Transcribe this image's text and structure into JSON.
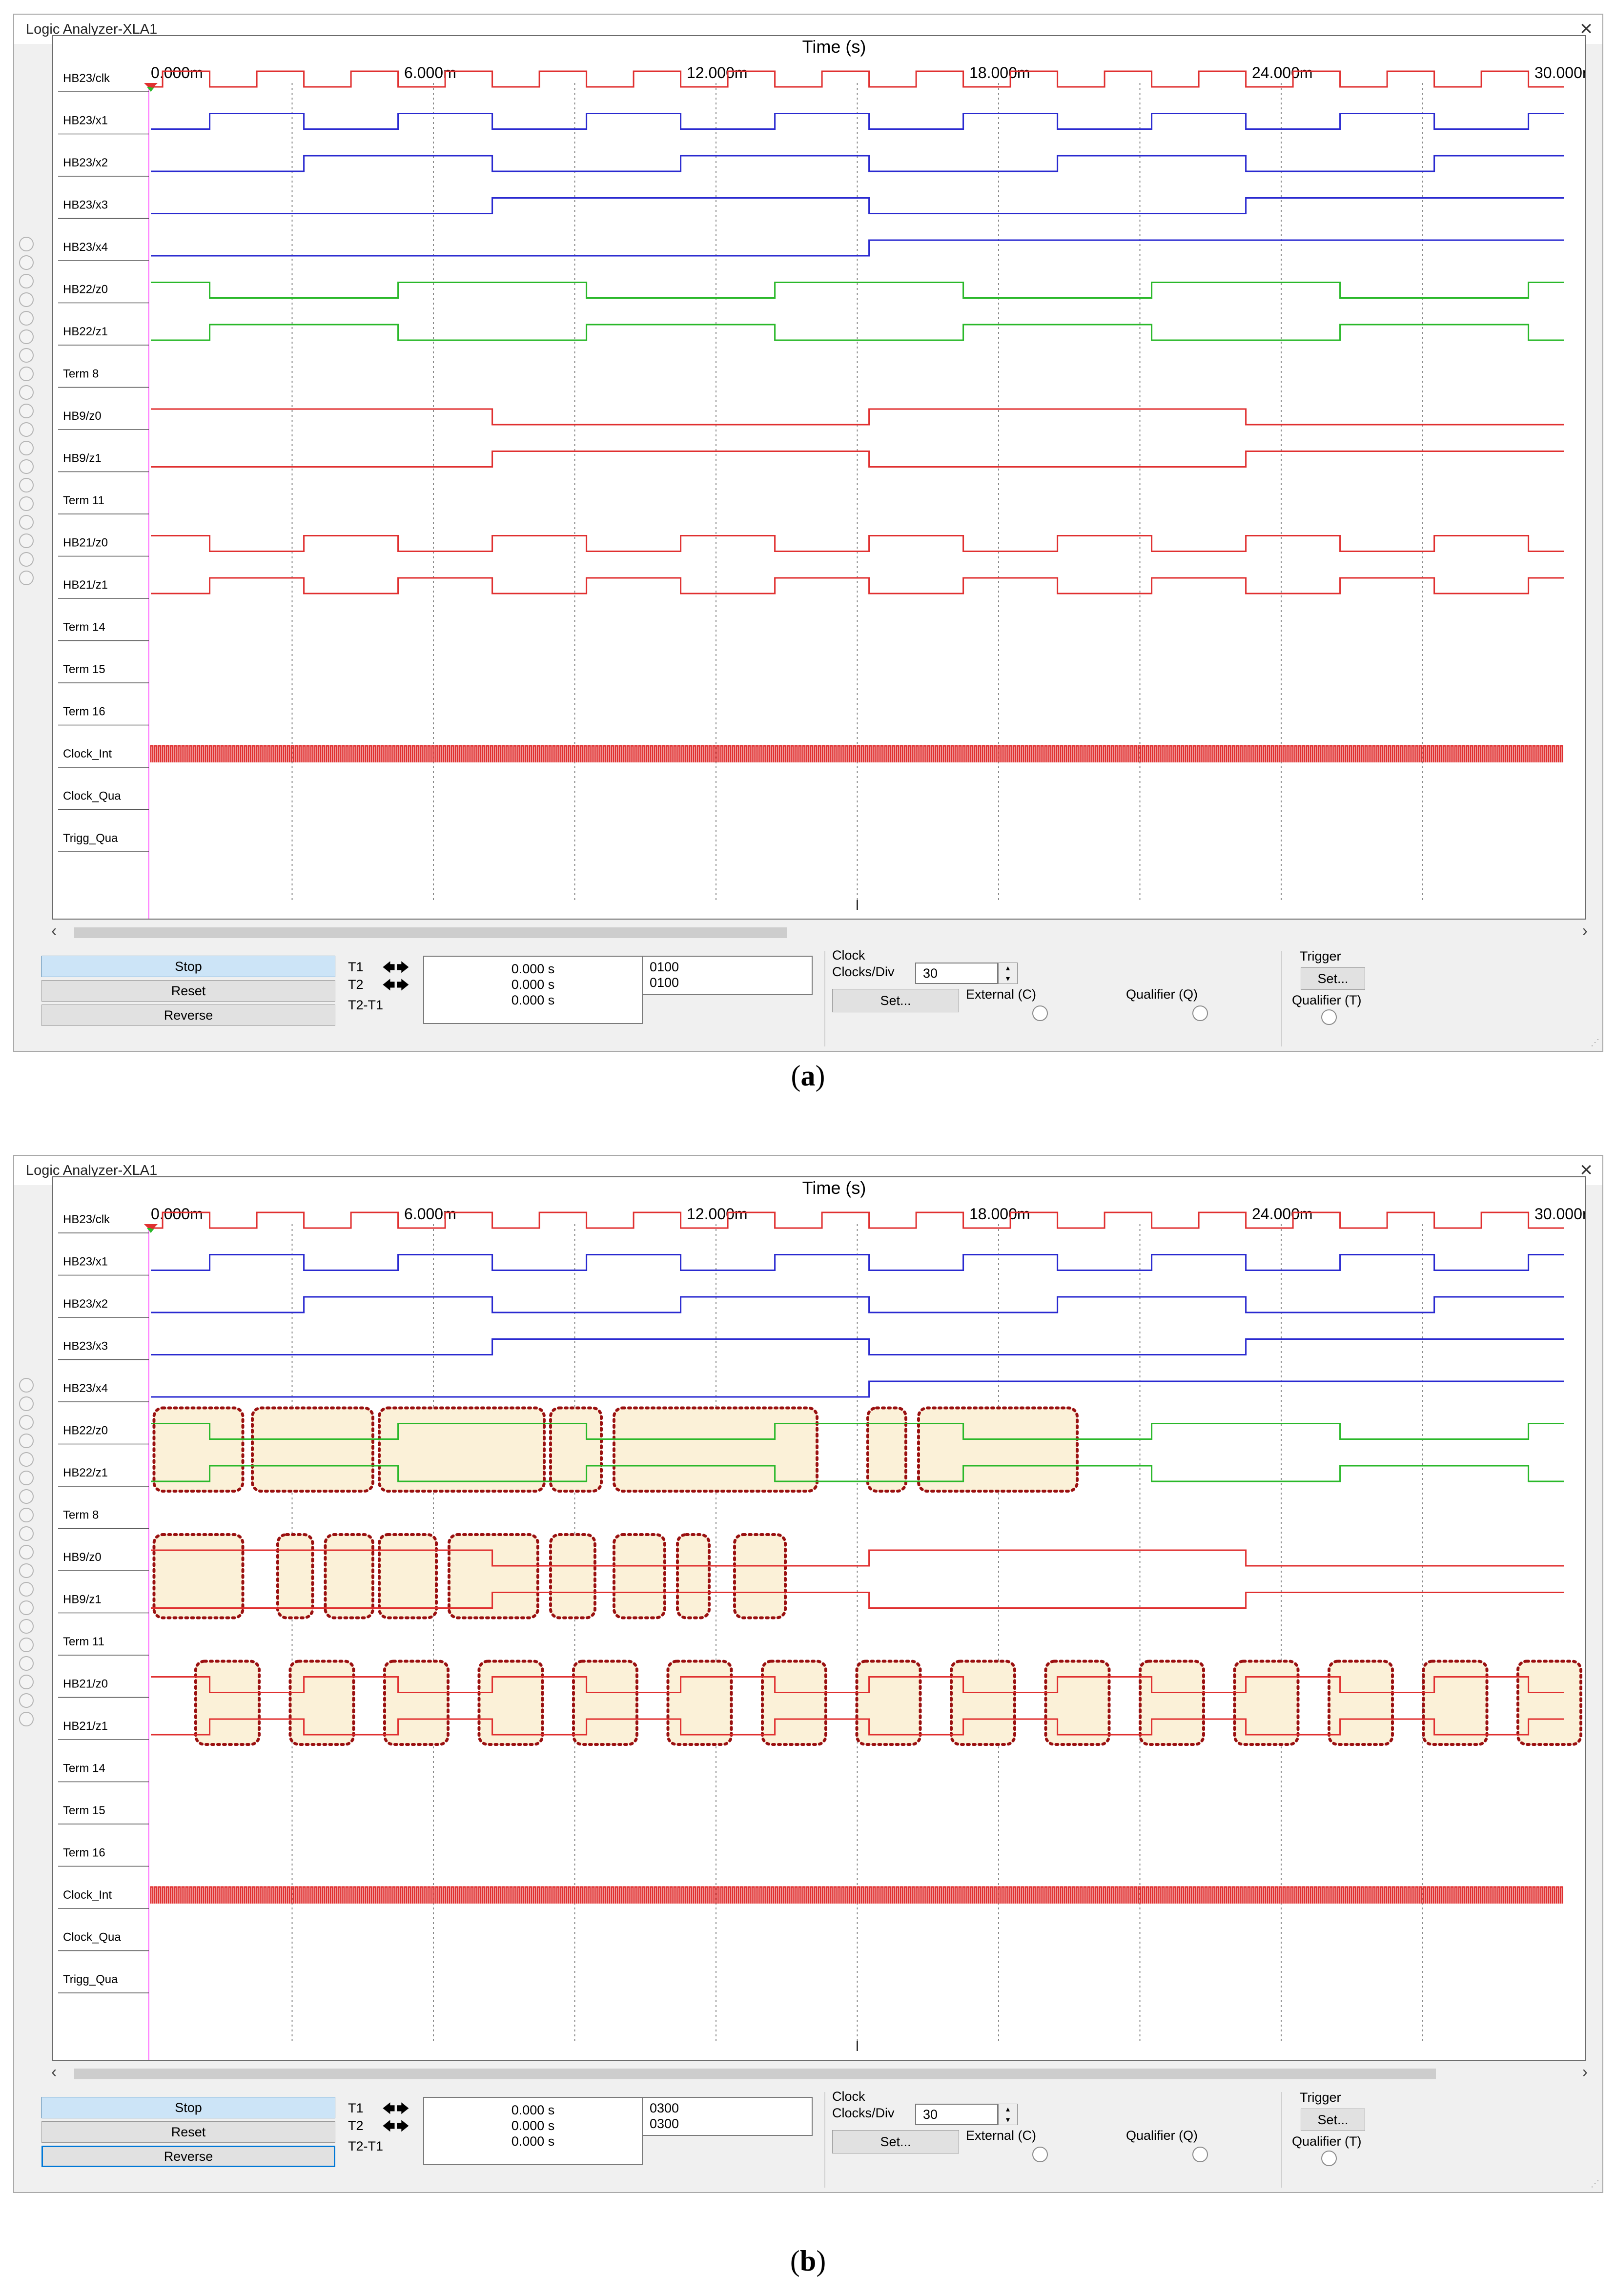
{
  "panels": [
    {
      "window_title": "Logic Analyzer-XLA1",
      "caption_label": "a",
      "x_axis_title": "Time (s)",
      "x_tick_labels": [
        "0.000m",
        "6.000m",
        "12.000m",
        "18.000m",
        "24.000m",
        "30.000m"
      ],
      "channel_names": [
        "HB23/clk",
        "HB23/x1",
        "HB23/x2",
        "HB23/x3",
        "HB23/x4",
        "HB22/z0",
        "HB22/z1",
        "Term 8",
        "HB9/z0",
        "HB9/z1",
        "Term 11",
        "HB21/z0",
        "HB21/z1",
        "Term 14",
        "Term 15",
        "Term 16",
        "Clock_Int",
        "Clock_Qua",
        "Trigg_Qua"
      ],
      "buttons": {
        "stop": "Stop",
        "reset": "Reset",
        "reverse": "Reverse"
      },
      "cursor_labels": [
        "T1",
        "T2",
        "T2-T1"
      ],
      "cursor_times": [
        "0.000 s",
        "0.000 s",
        "0.000 s"
      ],
      "cursor_values": [
        "0100",
        "0100"
      ],
      "clock_group": "Clock",
      "clocks_div_label": "Clocks/Div",
      "clocks_div_value": "30",
      "set_label": "Set...",
      "external_label": "External (C)",
      "qualifier_label": "Qualifier (Q)",
      "trigger_group": "Trigger",
      "trigger_qualifier_label": "Qualifier (T)",
      "highlighted": false
    },
    {
      "window_title": "Logic Analyzer-XLA1",
      "caption_label": "b",
      "x_axis_title": "Time (s)",
      "x_tick_labels": [
        "0.000m",
        "6.000m",
        "12.000m",
        "18.000m",
        "24.000m",
        "30.000m"
      ],
      "channel_names": [
        "HB23/clk",
        "HB23/x1",
        "HB23/x2",
        "HB23/x3",
        "HB23/x4",
        "HB22/z0",
        "HB22/z1",
        "Term 8",
        "HB9/z0",
        "HB9/z1",
        "Term 11",
        "HB21/z0",
        "HB21/z1",
        "Term 14",
        "Term 15",
        "Term 16",
        "Clock_Int",
        "Clock_Qua",
        "Trigg_Qua"
      ],
      "buttons": {
        "stop": "Stop",
        "reset": "Reset",
        "reverse": "Reverse"
      },
      "cursor_labels": [
        "T1",
        "T2",
        "T2-T1"
      ],
      "cursor_times": [
        "0.000 s",
        "0.000 s",
        "0.000 s"
      ],
      "cursor_values": [
        "0300",
        "0300"
      ],
      "clock_group": "Clock",
      "clocks_div_label": "Clocks/Div",
      "clocks_div_value": "30",
      "set_label": "Set...",
      "external_label": "External (C)",
      "qualifier_label": "Qualifier (Q)",
      "trigger_group": "Trigger",
      "trigger_qualifier_label": "Qualifier (T)",
      "highlighted": true
    }
  ],
  "timing": {
    "x_range_ms": [
      0,
      30
    ],
    "clock_period_ms": 2,
    "clock_high_ms": 1,
    "clock_first_rise_ms": 0.25,
    "colors": {
      "clk": "#e03030",
      "x": "#2a2ad0",
      "z22": "#2ab82a",
      "hb9": "#e03030",
      "hb21": "#e03030",
      "highlight_fill": "#fbf1d8",
      "highlight_border": "#9a1010",
      "grid": "#888888"
    }
  }
}
